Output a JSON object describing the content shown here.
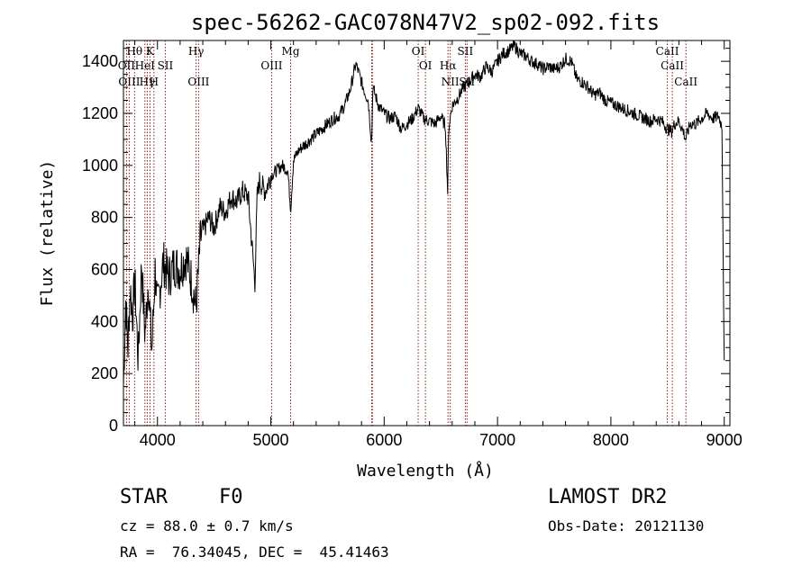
{
  "chart_data": {
    "type": "line",
    "title": "spec-56262-GAC078N47V2_sp02-092.fits",
    "xlabel": "Wavelength (Å)",
    "ylabel": "Flux (relative)",
    "xlim": [
      3700,
      9050
    ],
    "ylim": [
      0,
      1480
    ],
    "x_ticks": [
      4000,
      5000,
      6000,
      7000,
      8000,
      9000
    ],
    "y_ticks": [
      0,
      200,
      400,
      600,
      800,
      1000,
      1200,
      1400
    ],
    "grid": false,
    "line_color": "#000000",
    "marker_color": "#8b1a1a",
    "series": [
      {
        "x": [
          3700,
          3720,
          3740,
          3760,
          3780,
          3800,
          3830,
          3860,
          3890,
          3920,
          3950,
          3980,
          4000,
          4050,
          4100,
          4150,
          4200,
          4250,
          4300,
          4340,
          4380,
          4450,
          4500,
          4550,
          4600,
          4650,
          4700,
          4750,
          4800,
          4860,
          4880,
          4900,
          4950,
          5000,
          5050,
          5100,
          5150,
          5175,
          5200,
          5250,
          5300,
          5350,
          5400,
          5450,
          5500,
          5550,
          5600,
          5650,
          5700,
          5750,
          5780,
          5800,
          5830,
          5860,
          5890,
          5900,
          5950,
          6000,
          6050,
          6100,
          6150,
          6200,
          6250,
          6300,
          6350,
          6400,
          6450,
          6500,
          6540,
          6560,
          6570,
          6600,
          6650,
          6700,
          6750,
          6800,
          6850,
          6900,
          6950,
          7000,
          7050,
          7100,
          7150,
          7200,
          7250,
          7300,
          7350,
          7400,
          7450,
          7500,
          7550,
          7600,
          7650,
          7700,
          7750,
          7800,
          7850,
          7900,
          7950,
          8000,
          8050,
          8100,
          8150,
          8200,
          8250,
          8300,
          8350,
          8400,
          8450,
          8500,
          8540,
          8560,
          8600,
          8640,
          8660,
          8700,
          8750,
          8800,
          8850,
          8900,
          8950,
          8980,
          9000
        ],
        "y": [
          150,
          480,
          300,
          530,
          420,
          560,
          250,
          620,
          350,
          560,
          280,
          600,
          450,
          630,
          570,
          620,
          600,
          650,
          560,
          450,
          720,
          800,
          760,
          840,
          820,
          880,
          860,
          900,
          880,
          550,
          880,
          940,
          900,
          960,
          980,
          1000,
          980,
          830,
          1020,
          1060,
          1080,
          1100,
          1120,
          1140,
          1160,
          1180,
          1190,
          1230,
          1290,
          1390,
          1350,
          1320,
          1280,
          1250,
          1080,
          1300,
          1230,
          1200,
          1180,
          1190,
          1140,
          1160,
          1180,
          1220,
          1180,
          1170,
          1160,
          1190,
          1150,
          900,
          1150,
          1230,
          1260,
          1300,
          1320,
          1350,
          1340,
          1380,
          1360,
          1400,
          1430,
          1440,
          1460,
          1430,
          1420,
          1400,
          1390,
          1370,
          1380,
          1370,
          1380,
          1410,
          1400,
          1330,
          1320,
          1300,
          1270,
          1280,
          1250,
          1240,
          1230,
          1220,
          1210,
          1200,
          1190,
          1180,
          1170,
          1180,
          1170,
          1140,
          1130,
          1160,
          1170,
          1130,
          1100,
          1160,
          1160,
          1180,
          1200,
          1180,
          1190,
          1150,
          230
        ]
      }
    ],
    "lines": [
      {
        "name": "Hθ",
        "x": 3798,
        "row": 1
      },
      {
        "name": "K",
        "x": 3934,
        "row": 1
      },
      {
        "name": "OII",
        "x": 3727,
        "row": 2
      },
      {
        "name": "HeI",
        "x": 3889,
        "row": 2
      },
      {
        "name": "SII",
        "x": 4069,
        "row": 2
      },
      {
        "name": "OIII",
        "x": 3751,
        "row": 3
      },
      {
        "name": "Hγ",
        "x": 3910,
        "row": 3
      },
      {
        "name": "H",
        "x": 3969,
        "row": 3
      },
      {
        "name": "Hγ",
        "x": 4341,
        "row": 1
      },
      {
        "name": "OIII",
        "x": 4363,
        "row": 3
      },
      {
        "name": "OIII",
        "x": 5007,
        "row": 2
      },
      {
        "name": "Mg",
        "x": 5175,
        "row": 1
      },
      {
        "name": "OI",
        "x": 6300,
        "row": 1
      },
      {
        "name": "OI",
        "x": 6364,
        "row": 2
      },
      {
        "name": "Hα",
        "x": 6563,
        "row": 2
      },
      {
        "name": "NII",
        "x": 6583,
        "row": 3
      },
      {
        "name": "SII",
        "x": 6716,
        "row": 1
      },
      {
        "name": "SII",
        "x": 6731,
        "row": 3
      },
      {
        "name": "CaII",
        "x": 8498,
        "row": 1
      },
      {
        "name": "CaII",
        "x": 8542,
        "row": 2
      },
      {
        "name": "CaII",
        "x": 8662,
        "row": 3
      }
    ],
    "extra_marker_x": [
      5890,
      5896
    ]
  },
  "info": {
    "object_type": "STAR",
    "subclass": "F0",
    "survey": "LAMOST DR2",
    "cz": "cz = 88.0 ± 0.7 km/s",
    "obs_date": "Obs-Date: 20121130",
    "coords": "RA =  76.34045, DEC =  45.41463"
  }
}
